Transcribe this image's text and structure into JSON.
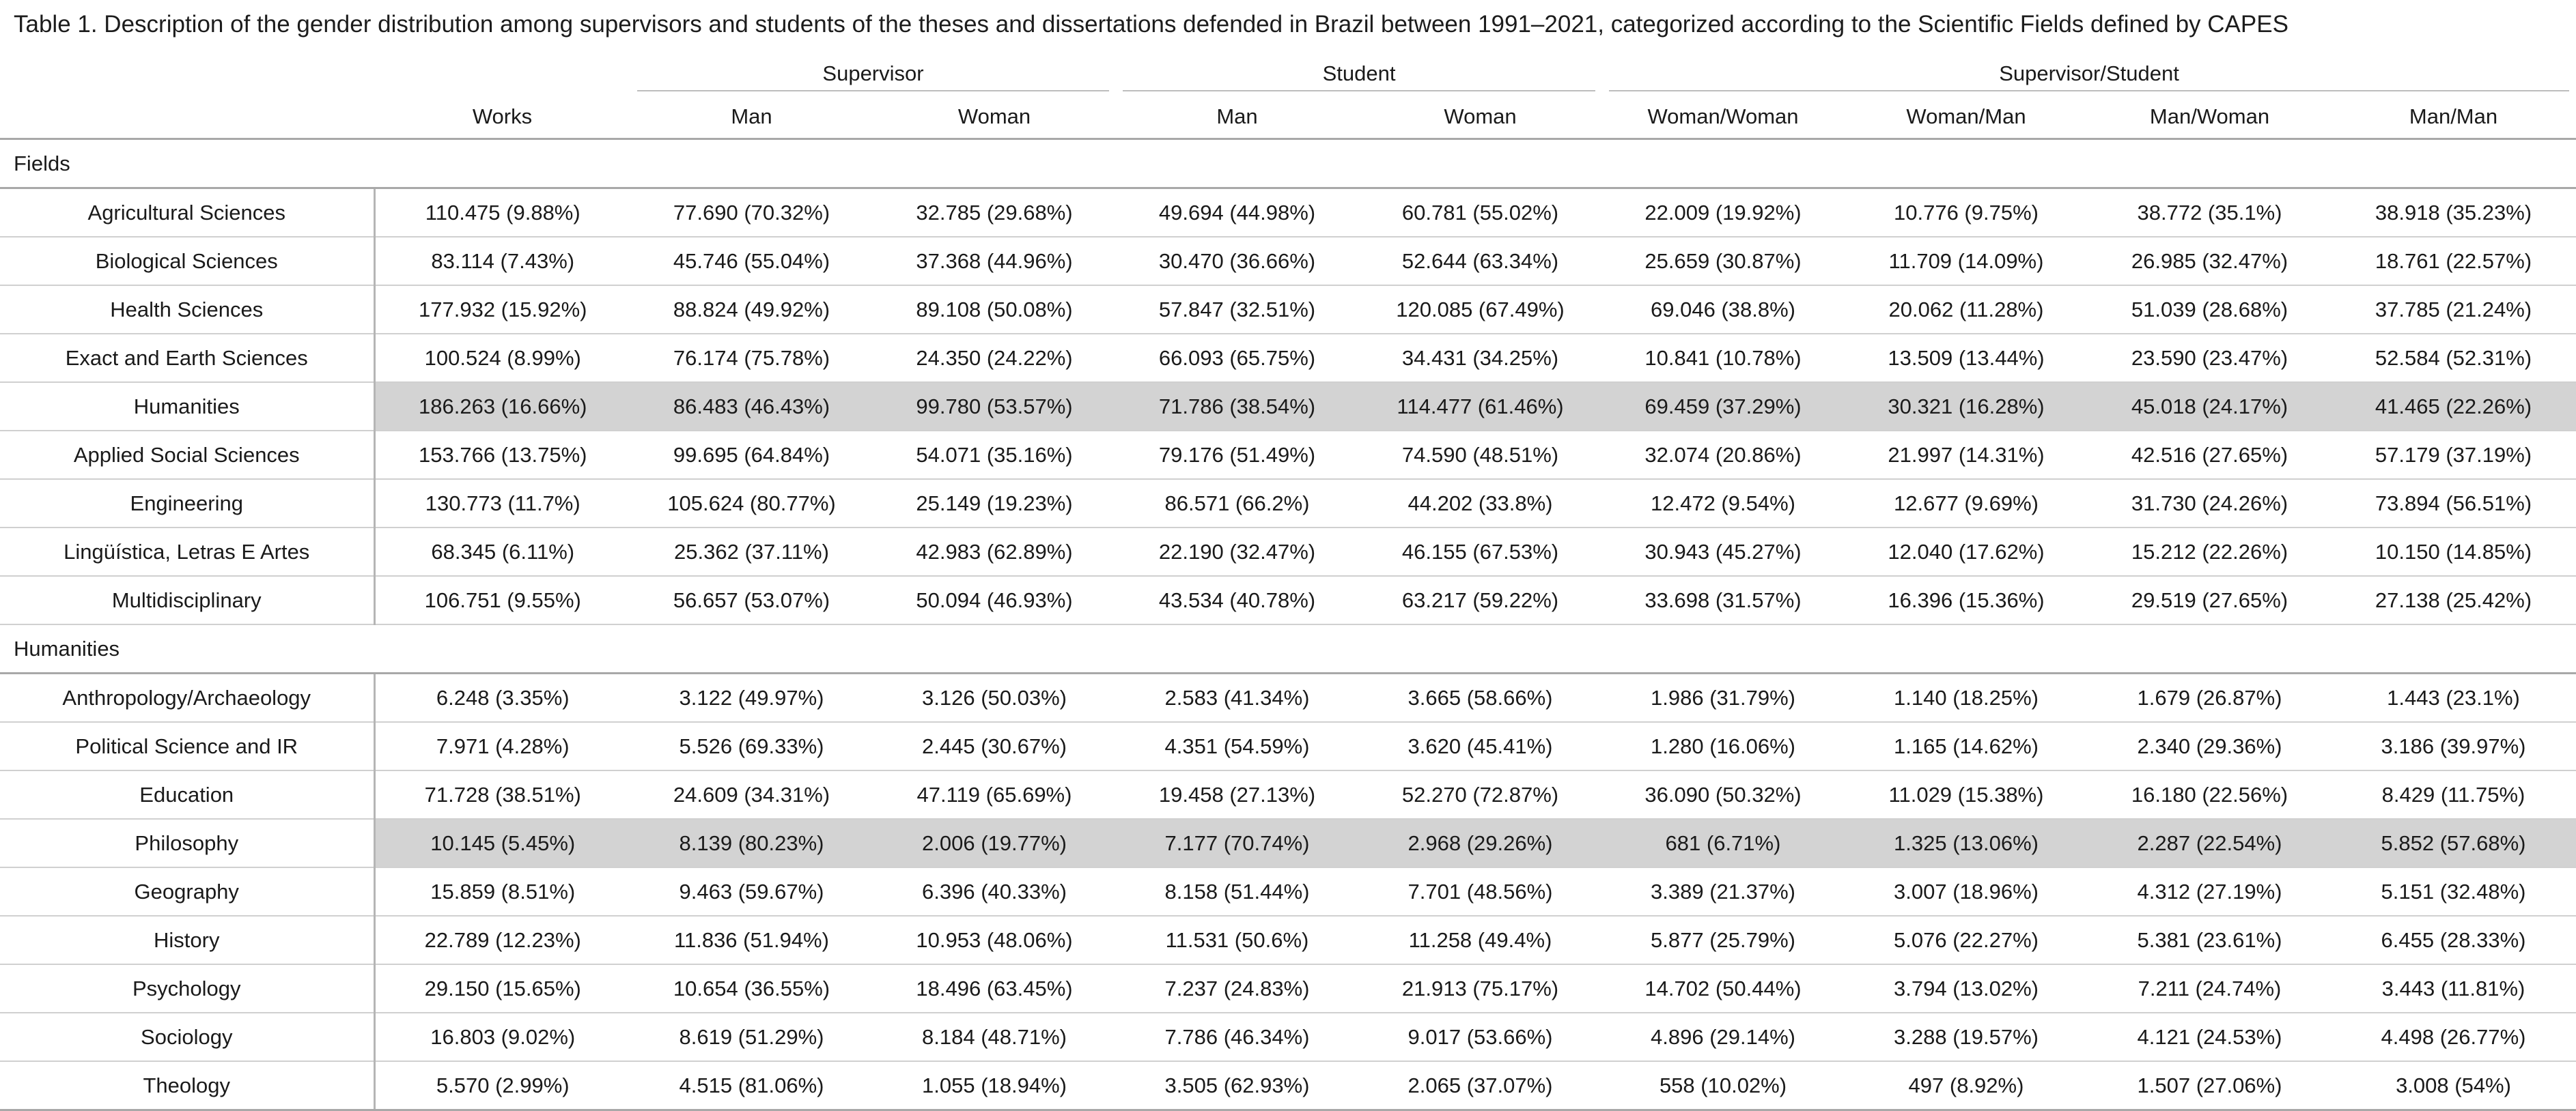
{
  "caption": "Table 1. Description of the gender distribution among supervisors and students of the theses and dissertations defended in Brazil between 1991–2021, categorized according to the Scientific Fields defined by CAPES",
  "header": {
    "groups": {
      "supervisor": "Supervisor",
      "student": "Student",
      "pair": "Supervisor/Student"
    },
    "columns": [
      "Works",
      "Man",
      "Woman",
      "Man",
      "Woman",
      "Woman/Woman",
      "Woman/Man",
      "Man/Woman",
      "Man/Man"
    ]
  },
  "sections": [
    {
      "title": "Fields",
      "rows": [
        {
          "label": "Agricultural Sciences",
          "highlight": false,
          "cells": [
            "110.475 (9.88%)",
            "77.690 (70.32%)",
            "32.785 (29.68%)",
            "49.694 (44.98%)",
            "60.781 (55.02%)",
            "22.009 (19.92%)",
            "10.776 (9.75%)",
            "38.772 (35.1%)",
            "38.918 (35.23%)"
          ]
        },
        {
          "label": "Biological Sciences",
          "highlight": false,
          "cells": [
            "83.114 (7.43%)",
            "45.746 (55.04%)",
            "37.368 (44.96%)",
            "30.470 (36.66%)",
            "52.644 (63.34%)",
            "25.659 (30.87%)",
            "11.709 (14.09%)",
            "26.985 (32.47%)",
            "18.761 (22.57%)"
          ]
        },
        {
          "label": "Health Sciences",
          "highlight": false,
          "cells": [
            "177.932 (15.92%)",
            "88.824 (49.92%)",
            "89.108 (50.08%)",
            "57.847 (32.51%)",
            "120.085 (67.49%)",
            "69.046 (38.8%)",
            "20.062 (11.28%)",
            "51.039 (28.68%)",
            "37.785 (21.24%)"
          ]
        },
        {
          "label": "Exact and Earth Sciences",
          "highlight": false,
          "cells": [
            "100.524 (8.99%)",
            "76.174 (75.78%)",
            "24.350 (24.22%)",
            "66.093 (65.75%)",
            "34.431 (34.25%)",
            "10.841 (10.78%)",
            "13.509 (13.44%)",
            "23.590 (23.47%)",
            "52.584 (52.31%)"
          ]
        },
        {
          "label": "Humanities",
          "highlight": true,
          "cells": [
            "186.263 (16.66%)",
            "86.483 (46.43%)",
            "99.780 (53.57%)",
            "71.786 (38.54%)",
            "114.477 (61.46%)",
            "69.459 (37.29%)",
            "30.321 (16.28%)",
            "45.018 (24.17%)",
            "41.465 (22.26%)"
          ]
        },
        {
          "label": "Applied Social Sciences",
          "highlight": false,
          "cells": [
            "153.766 (13.75%)",
            "99.695 (64.84%)",
            "54.071 (35.16%)",
            "79.176 (51.49%)",
            "74.590 (48.51%)",
            "32.074 (20.86%)",
            "21.997 (14.31%)",
            "42.516 (27.65%)",
            "57.179 (37.19%)"
          ]
        },
        {
          "label": "Engineering",
          "highlight": false,
          "cells": [
            "130.773 (11.7%)",
            "105.624 (80.77%)",
            "25.149 (19.23%)",
            "86.571 (66.2%)",
            "44.202 (33.8%)",
            "12.472 (9.54%)",
            "12.677 (9.69%)",
            "31.730 (24.26%)",
            "73.894 (56.51%)"
          ]
        },
        {
          "label": "Lingüística, Letras E Artes",
          "highlight": false,
          "cells": [
            "68.345 (6.11%)",
            "25.362 (37.11%)",
            "42.983 (62.89%)",
            "22.190 (32.47%)",
            "46.155 (67.53%)",
            "30.943 (45.27%)",
            "12.040 (17.62%)",
            "15.212 (22.26%)",
            "10.150 (14.85%)"
          ]
        },
        {
          "label": "Multidisciplinary",
          "highlight": false,
          "cells": [
            "106.751 (9.55%)",
            "56.657 (53.07%)",
            "50.094 (46.93%)",
            "43.534 (40.78%)",
            "63.217 (59.22%)",
            "33.698 (31.57%)",
            "16.396 (15.36%)",
            "29.519 (27.65%)",
            "27.138 (25.42%)"
          ]
        }
      ]
    },
    {
      "title": "Humanities",
      "rows": [
        {
          "label": "Anthropology/Archaeology",
          "highlight": false,
          "cells": [
            "6.248 (3.35%)",
            "3.122 (49.97%)",
            "3.126 (50.03%)",
            "2.583 (41.34%)",
            "3.665 (58.66%)",
            "1.986 (31.79%)",
            "1.140 (18.25%)",
            "1.679 (26.87%)",
            "1.443 (23.1%)"
          ]
        },
        {
          "label": "Political Science and IR",
          "highlight": false,
          "cells": [
            "7.971 (4.28%)",
            "5.526 (69.33%)",
            "2.445 (30.67%)",
            "4.351 (54.59%)",
            "3.620 (45.41%)",
            "1.280 (16.06%)",
            "1.165 (14.62%)",
            "2.340 (29.36%)",
            "3.186 (39.97%)"
          ]
        },
        {
          "label": "Education",
          "highlight": false,
          "cells": [
            "71.728 (38.51%)",
            "24.609 (34.31%)",
            "47.119 (65.69%)",
            "19.458 (27.13%)",
            "52.270 (72.87%)",
            "36.090 (50.32%)",
            "11.029 (15.38%)",
            "16.180 (22.56%)",
            "8.429 (11.75%)"
          ]
        },
        {
          "label": "Philosophy",
          "highlight": true,
          "cells": [
            "10.145 (5.45%)",
            "8.139 (80.23%)",
            "2.006 (19.77%)",
            "7.177 (70.74%)",
            "2.968 (29.26%)",
            "681 (6.71%)",
            "1.325 (13.06%)",
            "2.287 (22.54%)",
            "5.852 (57.68%)"
          ]
        },
        {
          "label": "Geography",
          "highlight": false,
          "cells": [
            "15.859 (8.51%)",
            "9.463 (59.67%)",
            "6.396 (40.33%)",
            "8.158 (51.44%)",
            "7.701 (48.56%)",
            "3.389 (21.37%)",
            "3.007 (18.96%)",
            "4.312 (27.19%)",
            "5.151 (32.48%)"
          ]
        },
        {
          "label": "History",
          "highlight": false,
          "cells": [
            "22.789 (12.23%)",
            "11.836 (51.94%)",
            "10.953 (48.06%)",
            "11.531 (50.6%)",
            "11.258 (49.4%)",
            "5.877 (25.79%)",
            "5.076 (22.27%)",
            "5.381 (23.61%)",
            "6.455 (28.33%)"
          ]
        },
        {
          "label": "Psychology",
          "highlight": false,
          "cells": [
            "29.150 (15.65%)",
            "10.654 (36.55%)",
            "18.496 (63.45%)",
            "7.237 (24.83%)",
            "21.913 (75.17%)",
            "14.702 (50.44%)",
            "3.794 (13.02%)",
            "7.211 (24.74%)",
            "3.443 (11.81%)"
          ]
        },
        {
          "label": "Sociology",
          "highlight": false,
          "cells": [
            "16.803 (9.02%)",
            "8.619 (51.29%)",
            "8.184 (48.71%)",
            "7.786 (46.34%)",
            "9.017 (53.66%)",
            "4.896 (29.14%)",
            "3.288 (19.57%)",
            "4.121 (24.53%)",
            "4.498 (26.77%)"
          ]
        },
        {
          "label": "Theology",
          "highlight": false,
          "cells": [
            "5.570 (2.99%)",
            "4.515 (81.06%)",
            "1.055 (18.94%)",
            "3.505 (62.93%)",
            "2.065 (37.07%)",
            "558 (10.02%)",
            "497 (8.92%)",
            "1.507 (27.06%)",
            "3.008 (54%)"
          ]
        }
      ]
    }
  ]
}
